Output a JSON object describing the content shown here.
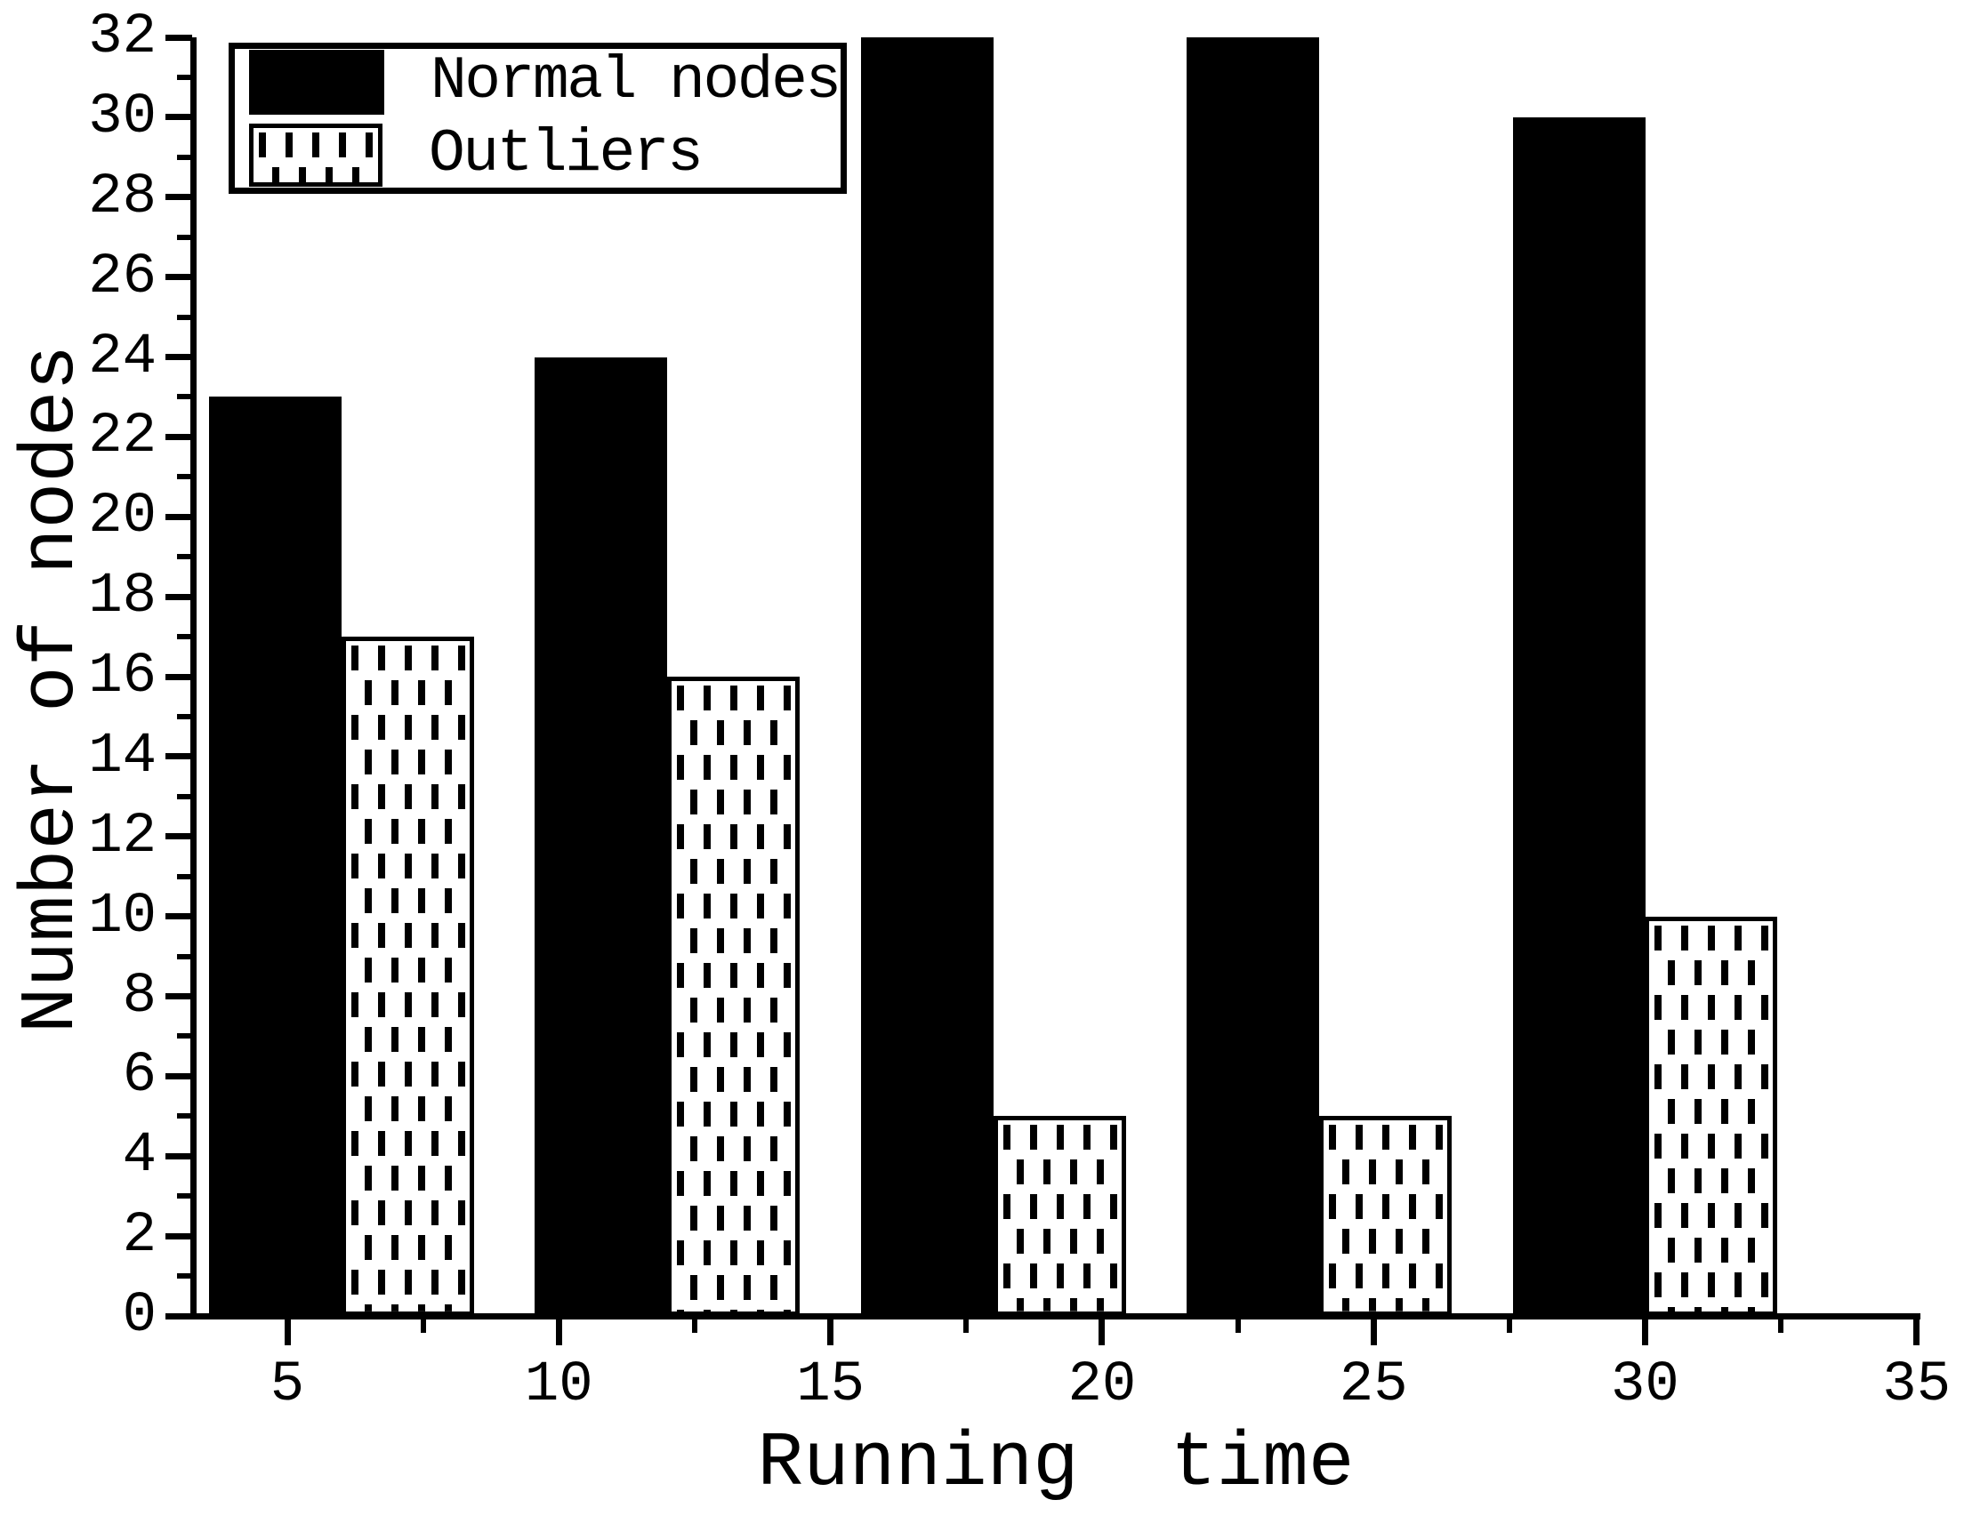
{
  "chart_data": {
    "type": "bar",
    "title": "",
    "xlabel": "Running  time",
    "ylabel": "Number of nodes",
    "series": [
      {
        "name": "Normal nodes",
        "pattern": "solid-black",
        "values": [
          23,
          24,
          32,
          32,
          30
        ]
      },
      {
        "name": "Outliers",
        "pattern": "vertical-dashes",
        "values": [
          17,
          16,
          5,
          5,
          10
        ]
      }
    ],
    "pair_boundary_x": [
      6,
      12,
      18,
      24,
      30
    ],
    "bar_width_units": 2.44,
    "xlim": [
      3.28,
      35.07
    ],
    "ylim": [
      0,
      32
    ],
    "x_major_ticks": [
      5,
      10,
      15,
      20,
      25,
      30,
      35
    ],
    "x_minor_ticks": [
      7.5,
      12.5,
      17.5,
      22.5,
      27.5,
      32.5
    ],
    "y_major_ticks": [
      0,
      2,
      4,
      6,
      8,
      10,
      12,
      14,
      16,
      18,
      20,
      22,
      24,
      26,
      28,
      30,
      32
    ],
    "y_minor_ticks": [
      1,
      3,
      5,
      7,
      9,
      11,
      13,
      15,
      17,
      19,
      21,
      23,
      25,
      27,
      29,
      31
    ],
    "grid": false,
    "legend_position": "top-left",
    "colors": {
      "foreground": "#000000",
      "background": "#ffffff"
    }
  }
}
